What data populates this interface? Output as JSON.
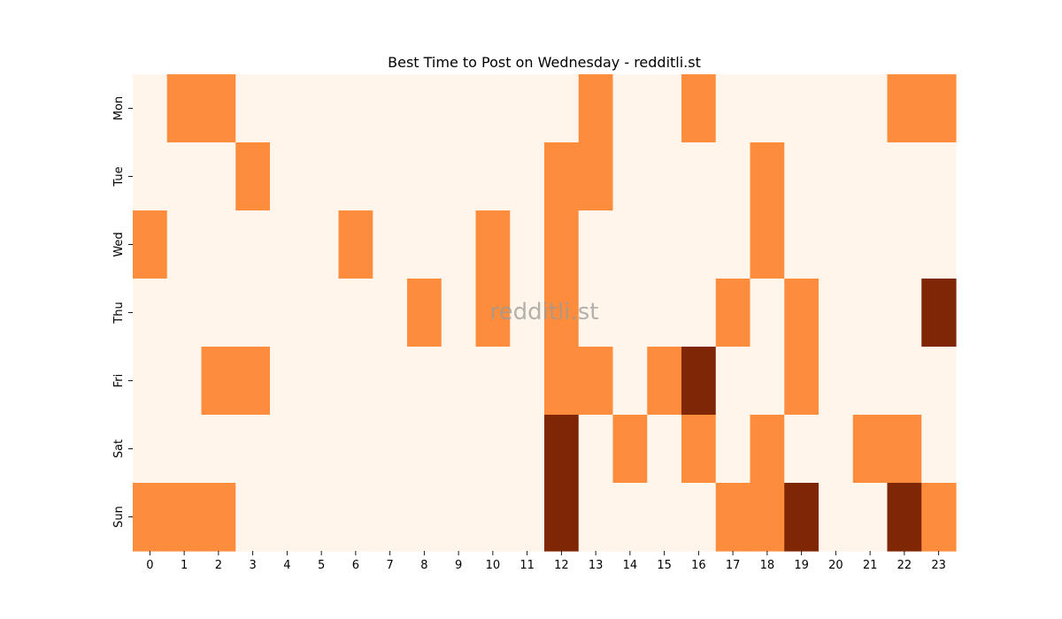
{
  "chart_data": {
    "type": "heatmap",
    "title": "Best Time to Post on Wednesday - redditli.st",
    "watermark": "redditli.st",
    "x": [
      "0",
      "1",
      "2",
      "3",
      "4",
      "5",
      "6",
      "7",
      "8",
      "9",
      "10",
      "11",
      "12",
      "13",
      "14",
      "15",
      "16",
      "17",
      "18",
      "19",
      "20",
      "21",
      "22",
      "23"
    ],
    "y": [
      "Mon",
      "Tue",
      "Wed",
      "Thu",
      "Fri",
      "Sat",
      "Sun"
    ],
    "values": [
      [
        0,
        1,
        1,
        0,
        0,
        0,
        0,
        0,
        0,
        0,
        0,
        0,
        0,
        1,
        0,
        0,
        1,
        0,
        0,
        0,
        0,
        0,
        1,
        1
      ],
      [
        0,
        0,
        0,
        1,
        0,
        0,
        0,
        0,
        0,
        0,
        0,
        0,
        1,
        1,
        0,
        0,
        0,
        0,
        1,
        0,
        0,
        0,
        0,
        0
      ],
      [
        1,
        0,
        0,
        0,
        0,
        0,
        1,
        0,
        0,
        0,
        1,
        0,
        1,
        0,
        0,
        0,
        0,
        0,
        1,
        0,
        0,
        0,
        0,
        0
      ],
      [
        0,
        0,
        0,
        0,
        0,
        0,
        0,
        0,
        1,
        0,
        1,
        0,
        1,
        0,
        0,
        0,
        0,
        1,
        0,
        1,
        0,
        0,
        0,
        2
      ],
      [
        0,
        0,
        1,
        1,
        0,
        0,
        0,
        0,
        0,
        0,
        0,
        0,
        1,
        1,
        0,
        1,
        2,
        0,
        0,
        1,
        0,
        0,
        0,
        0
      ],
      [
        0,
        0,
        0,
        0,
        0,
        0,
        0,
        0,
        0,
        0,
        0,
        0,
        2,
        0,
        1,
        0,
        1,
        0,
        1,
        0,
        0,
        1,
        1,
        0
      ],
      [
        1,
        1,
        1,
        0,
        0,
        0,
        0,
        0,
        0,
        0,
        0,
        0,
        2,
        0,
        0,
        0,
        0,
        1,
        1,
        2,
        0,
        0,
        2,
        1
      ]
    ],
    "colormap": {
      "0": "#fff5eb",
      "1": "#fd8d3c",
      "2": "#7f2704"
    },
    "legend": "none",
    "grid": false
  }
}
